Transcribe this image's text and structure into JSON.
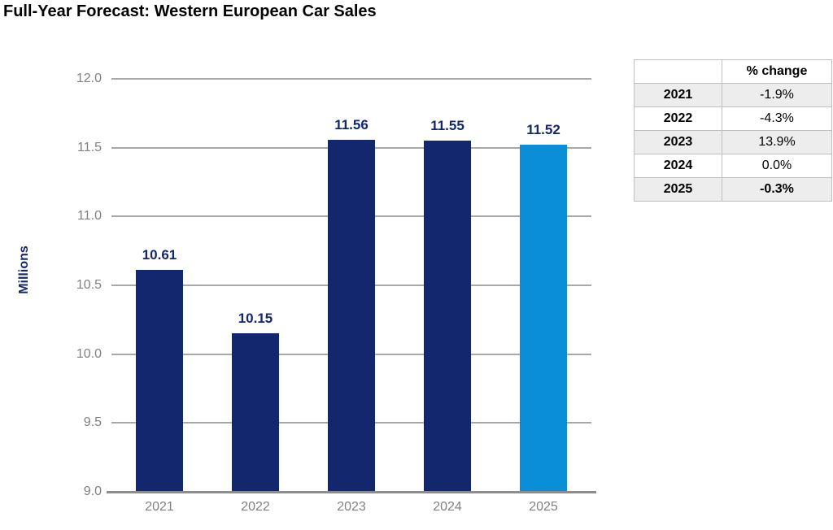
{
  "title": "Full-Year Forecast: Western European Car Sales",
  "chart_data": {
    "type": "bar",
    "title": "Full-Year Forecast: Western European Car Sales",
    "categories": [
      "2021",
      "2022",
      "2023",
      "2024",
      "2025"
    ],
    "values": [
      10.61,
      10.15,
      11.56,
      11.55,
      11.52
    ],
    "data_labels": [
      "10.61",
      "10.15",
      "11.56",
      "11.55",
      "11.52"
    ],
    "xlabel": "",
    "ylabel": "Millions",
    "ylim": [
      9.0,
      12.0
    ],
    "ytick_step": 0.5,
    "yticks": [
      "12.0",
      "11.5",
      "11.0",
      "10.5",
      "10.0",
      "9.5",
      "9.0"
    ],
    "grid": true,
    "legend": false,
    "bar_colors": [
      "#13276F",
      "#13276F",
      "#13276F",
      "#13276F",
      "#0A8ED6"
    ],
    "value_label_color": "#13276F"
  },
  "table": {
    "headers": [
      "",
      "% change"
    ],
    "rows": [
      {
        "year": "2021",
        "change": "-1.9%",
        "bold": false
      },
      {
        "year": "2022",
        "change": "-4.3%",
        "bold": false
      },
      {
        "year": "2023",
        "change": "13.9%",
        "bold": false
      },
      {
        "year": "2024",
        "change": "0.0%",
        "bold": false
      },
      {
        "year": "2025",
        "change": "-0.3%",
        "bold": true
      }
    ]
  },
  "colors": {
    "bar_navy": "#13276F",
    "bar_light_blue": "#0A8ED6",
    "axis_text": "#808080",
    "gridline": "#A8A8A8",
    "axis_line": "#8C8C8C",
    "table_border": "#BFBFBF",
    "table_row_shade": "#EDEDED",
    "title_text": "#000000"
  }
}
